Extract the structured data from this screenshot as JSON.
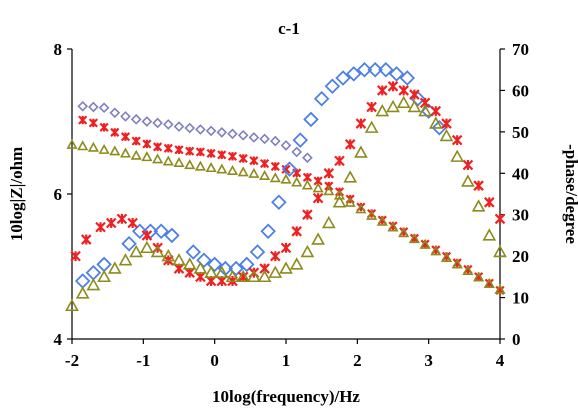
{
  "chart_data": {
    "type": "scatter",
    "title": "c-1",
    "xlabel": "10log(frequency)/Hz",
    "ylabel_left": "10log|Z|/ohm",
    "ylabel_right": "-phase/degree",
    "xlim": [
      -2,
      4
    ],
    "ylim_left": [
      4,
      8
    ],
    "ylim_right": [
      0,
      70
    ],
    "xticks": [
      "-2",
      "-1",
      "0",
      "1",
      "2",
      "3",
      "4"
    ],
    "yticks_left": [
      "4",
      "6",
      "8"
    ],
    "yticks_right": [
      "0",
      "10",
      "20",
      "30",
      "40",
      "50",
      "60",
      "70"
    ],
    "grid": false,
    "legend": "none",
    "series": [
      {
        "axis": "left",
        "marker": "diamond",
        "size": "small",
        "color": "#8080c0",
        "x": [
          -1.85,
          -1.7,
          -1.55,
          -1.4,
          -1.25,
          -1.1,
          -0.95,
          -0.8,
          -0.65,
          -0.5,
          -0.35,
          -0.2,
          -0.05,
          0.1,
          0.25,
          0.4,
          0.55,
          0.7,
          0.85,
          1.0,
          1.15,
          1.3
        ],
        "y": [
          7.21,
          7.2,
          7.19,
          7.12,
          7.07,
          7.03,
          7.0,
          6.98,
          6.96,
          6.93,
          6.91,
          6.89,
          6.87,
          6.85,
          6.83,
          6.81,
          6.78,
          6.76,
          6.73,
          6.67,
          6.58,
          6.5
        ]
      },
      {
        "axis": "left",
        "marker": "x",
        "size": "small",
        "color": "#ee2020",
        "x": [
          -1.85,
          -1.7,
          -1.55,
          -1.4,
          -1.25,
          -1.1,
          -0.95,
          -0.8,
          -0.65,
          -0.5,
          -0.35,
          -0.2,
          -0.05,
          0.1,
          0.25,
          0.4,
          0.55,
          0.7,
          0.85,
          1.0,
          1.15,
          1.3,
          1.45,
          1.6,
          1.75,
          1.9,
          2.05,
          2.2,
          2.35,
          2.5,
          2.65,
          2.8,
          2.95,
          3.1,
          3.25,
          3.4,
          3.55,
          3.7,
          3.85,
          4.0
        ],
        "y": [
          7.02,
          6.98,
          6.92,
          6.85,
          6.79,
          6.73,
          6.69,
          6.65,
          6.63,
          6.61,
          6.59,
          6.58,
          6.56,
          6.54,
          6.52,
          6.49,
          6.46,
          6.42,
          6.38,
          6.34,
          6.29,
          6.23,
          6.18,
          6.11,
          6.03,
          5.93,
          5.82,
          5.73,
          5.64,
          5.56,
          5.48,
          5.39,
          5.31,
          5.23,
          5.14,
          5.05,
          4.96,
          4.86,
          4.77,
          4.67
        ]
      },
      {
        "axis": "left",
        "marker": "triangle",
        "size": "small",
        "color": "#8c8c1c",
        "x": [
          -2.0,
          -1.85,
          -1.7,
          -1.55,
          -1.4,
          -1.25,
          -1.1,
          -0.95,
          -0.8,
          -0.65,
          -0.5,
          -0.35,
          -0.2,
          -0.05,
          0.1,
          0.25,
          0.4,
          0.55,
          0.7,
          0.85,
          1.0,
          1.15,
          1.3,
          1.45,
          1.6,
          1.75,
          1.9,
          2.05,
          2.2,
          2.35,
          2.5,
          2.65,
          2.8,
          2.95,
          3.1,
          3.25,
          3.4,
          3.55,
          3.7,
          3.85,
          4.0
        ],
        "y": [
          6.68,
          6.66,
          6.64,
          6.61,
          6.59,
          6.56,
          6.53,
          6.51,
          6.48,
          6.45,
          6.43,
          6.4,
          6.38,
          6.36,
          6.34,
          6.32,
          6.3,
          6.28,
          6.25,
          6.22,
          6.2,
          6.16,
          6.12,
          6.08,
          6.04,
          5.98,
          5.88,
          5.79,
          5.7,
          5.62,
          5.54,
          5.46,
          5.38,
          5.3,
          5.21,
          5.12,
          5.03,
          4.94,
          4.85,
          4.76,
          4.68
        ]
      },
      {
        "axis": "right",
        "marker": "diamond",
        "size": "large",
        "color": "#4d80e6",
        "x": [
          -1.85,
          -1.7,
          -1.55,
          -1.2,
          -1.05,
          -0.9,
          -0.75,
          -0.6,
          -0.3,
          -0.15,
          0.0,
          0.15,
          0.3,
          0.45,
          0.6,
          0.75,
          0.9,
          1.05,
          1.2,
          1.35,
          1.5,
          1.65,
          1.8,
          1.95,
          2.1,
          2.25,
          2.4,
          2.55,
          2.7,
          2.85,
          3.0,
          3.15
        ],
        "y": [
          14,
          16,
          18,
          23,
          26,
          26,
          26,
          25,
          21,
          19,
          18,
          17,
          17,
          18,
          21,
          26,
          33,
          41,
          48,
          53,
          58,
          61,
          63,
          64,
          65,
          65,
          65,
          64,
          63,
          58,
          55,
          51
        ]
      },
      {
        "axis": "right",
        "marker": "x",
        "size": "large",
        "color": "#ee2020",
        "x": [
          -1.95,
          -1.8,
          -1.6,
          -1.45,
          -1.3,
          -1.15,
          -0.95,
          -0.8,
          -0.65,
          -0.5,
          -0.35,
          -0.2,
          -0.05,
          0.1,
          0.25,
          0.4,
          0.55,
          0.7,
          0.85,
          1.0,
          1.15,
          1.3,
          1.45,
          1.6,
          1.75,
          1.9,
          2.05,
          2.2,
          2.35,
          2.5,
          2.65,
          2.8,
          2.95,
          3.1,
          3.25,
          3.4,
          3.55,
          3.7,
          3.85,
          4.0
        ],
        "y": [
          20,
          24,
          27,
          28,
          29,
          28,
          25,
          22,
          19,
          17,
          16,
          15,
          14,
          14,
          14,
          15,
          16,
          17,
          20,
          22,
          26,
          30,
          34,
          40,
          43,
          47,
          52,
          56,
          60,
          61,
          60,
          59,
          57,
          55,
          52,
          48,
          42,
          37,
          33,
          29
        ]
      },
      {
        "axis": "right",
        "marker": "triangle",
        "size": "large",
        "color": "#8c8c1c",
        "x": [
          -2.0,
          -1.85,
          -1.7,
          -1.55,
          -1.4,
          -1.25,
          -1.1,
          -0.95,
          -0.8,
          -0.65,
          -0.5,
          -0.35,
          -0.2,
          -0.05,
          0.1,
          0.25,
          0.4,
          0.55,
          0.7,
          0.85,
          1.0,
          1.15,
          1.3,
          1.45,
          1.6,
          1.75,
          1.9,
          2.05,
          2.2,
          2.35,
          2.5,
          2.65,
          2.8,
          2.95,
          3.1,
          3.25,
          3.4,
          3.55,
          3.7,
          3.85,
          4.0
        ],
        "y": [
          8,
          11,
          13,
          15,
          17,
          19,
          21,
          22,
          21,
          20,
          19,
          18,
          17,
          16,
          16,
          15,
          15,
          15,
          15,
          16,
          17,
          18,
          21,
          24,
          28,
          33,
          39,
          45,
          51,
          55,
          56,
          57,
          56,
          55,
          52,
          49,
          44,
          38,
          32,
          25,
          21
        ]
      }
    ]
  }
}
